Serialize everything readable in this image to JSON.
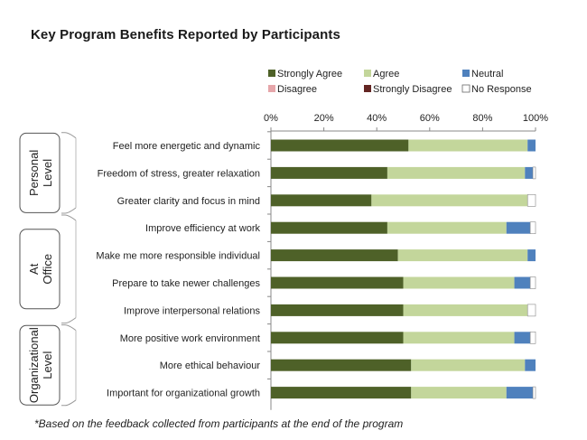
{
  "chart_data": {
    "type": "bar",
    "orientation": "horizontal",
    "stacked": "percent",
    "title": "Key Program Benefits Reported by Participants",
    "footnote": "*Based on the feedback collected from participants at the end of the program",
    "xlim": [
      0,
      100
    ],
    "x_ticks": [
      "0%",
      "20%",
      "40%",
      "60%",
      "80%",
      "100%"
    ],
    "legend_position": "top-right",
    "grid": false,
    "categories": [
      "Feel more energetic and dynamic",
      "Freedom of stress, greater relaxation",
      "Greater clarity and focus in mind",
      "Improve efficiency at work",
      "Make me more responsible individual",
      "Prepare to take newer challenges",
      "Improve interpersonal relations",
      "More positive work environment",
      "More ethical behaviour",
      "Important for organizational growth"
    ],
    "groups": [
      {
        "label": "Personal Level",
        "lines": [
          "Personal",
          "Level"
        ],
        "start": 0,
        "end": 2
      },
      {
        "label": "At Office",
        "lines": [
          "At",
          "Office"
        ],
        "start": 3,
        "end": 6
      },
      {
        "label": "Organizational Level",
        "lines": [
          "Organizational",
          "Level"
        ],
        "start": 7,
        "end": 9
      }
    ],
    "series": [
      {
        "name": "Strongly Agree",
        "color": "#4e6128",
        "values": [
          52,
          44,
          38,
          44,
          48,
          50,
          50,
          50,
          53,
          53
        ]
      },
      {
        "name": "Agree",
        "color": "#c3d69b",
        "values": [
          45,
          52,
          59,
          45,
          49,
          42,
          47,
          42,
          43,
          36
        ]
      },
      {
        "name": "Neutral",
        "color": "#4f81bd",
        "values": [
          3,
          3,
          0,
          9,
          3,
          6,
          0,
          6,
          4,
          10
        ]
      },
      {
        "name": "Disagree",
        "color": "#e6a6aa",
        "values": [
          0,
          0,
          0,
          0,
          0,
          0,
          0,
          0,
          0,
          0
        ]
      },
      {
        "name": "Strongly Disagree",
        "color": "#632523",
        "values": [
          0,
          0,
          0,
          0,
          0,
          0,
          0,
          0,
          0,
          0
        ]
      },
      {
        "name": "No Response",
        "color": "#ffffff",
        "values": [
          0,
          1,
          3,
          2,
          0,
          2,
          3,
          2,
          0,
          1
        ]
      }
    ]
  }
}
